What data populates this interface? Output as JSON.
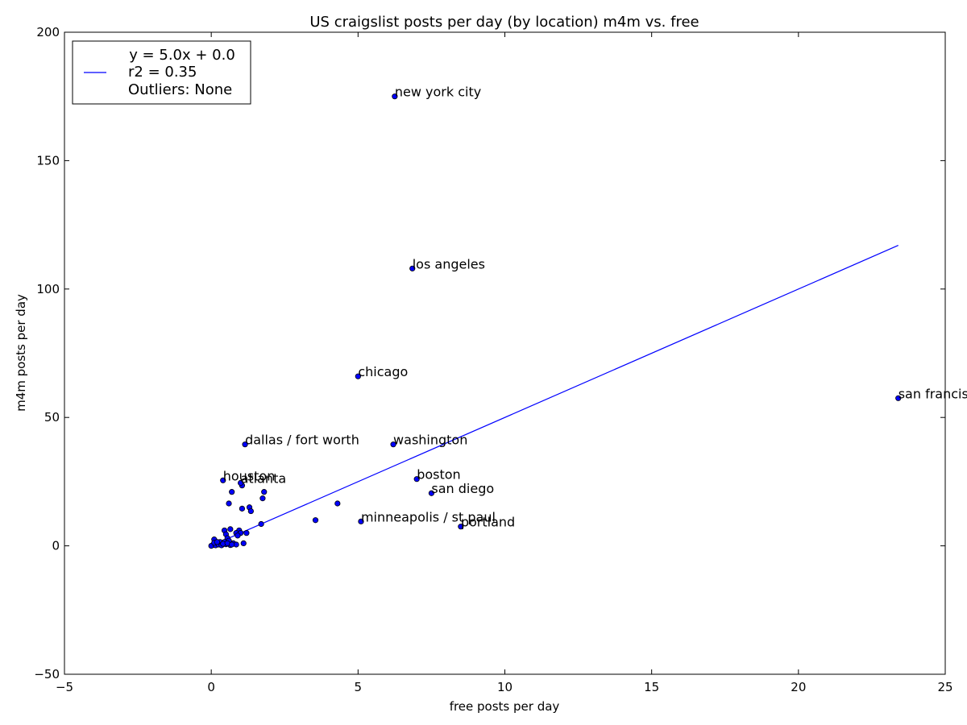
{
  "chart_data": {
    "type": "scatter",
    "title": "US craigslist posts per day (by location) m4m vs. free",
    "xlabel": "free posts per day",
    "ylabel": "m4m posts per day",
    "xlim": [
      -5,
      25
    ],
    "ylim": [
      -50,
      200
    ],
    "xticks": [
      -5,
      0,
      5,
      10,
      15,
      20,
      25
    ],
    "yticks": [
      -50,
      0,
      50,
      100,
      150,
      200
    ],
    "x_tick_labels": [
      "−5",
      "0",
      "5",
      "10",
      "15",
      "20",
      "25"
    ],
    "y_tick_labels": [
      "−50",
      "0",
      "50",
      "100",
      "150",
      "200"
    ],
    "grid": false,
    "legend": {
      "position": "top-left",
      "lines": [
        "y = 5.0x + 0.0",
        "r2 = 0.35",
        "Outliers: None"
      ]
    },
    "fit_line": {
      "slope": 5.0,
      "intercept": 0.0,
      "x_range": [
        0.0,
        23.4
      ],
      "color": "#0000ff"
    },
    "point_color": "#0000ff",
    "labeled_points": [
      {
        "label": "new york city",
        "x": 6.25,
        "y": 175
      },
      {
        "label": "los angeles",
        "x": 6.85,
        "y": 108
      },
      {
        "label": "chicago",
        "x": 5.0,
        "y": 66
      },
      {
        "label": "san francisco",
        "x": 23.4,
        "y": 57.5
      },
      {
        "label": "dallas / fort worth",
        "x": 1.15,
        "y": 39.5
      },
      {
        "label": "washington",
        "x": 6.2,
        "y": 39.5
      },
      {
        "label": "houston",
        "x": 0.4,
        "y": 25.5
      },
      {
        "label": "atlanta",
        "x": 1.0,
        "y": 24.5
      },
      {
        "label": "boston",
        "x": 7.0,
        "y": 26
      },
      {
        "label": "san diego",
        "x": 7.5,
        "y": 20.5
      },
      {
        "label": "minneapolis / st paul",
        "x": 5.1,
        "y": 9.5
      },
      {
        "label": "portland",
        "x": 8.5,
        "y": 7.5
      }
    ],
    "unlabeled_points": [
      {
        "x": 0.7,
        "y": 21
      },
      {
        "x": 1.05,
        "y": 23.5
      },
      {
        "x": 1.8,
        "y": 21
      },
      {
        "x": 1.75,
        "y": 18.5
      },
      {
        "x": 0.6,
        "y": 16.5
      },
      {
        "x": 1.05,
        "y": 14.5
      },
      {
        "x": 1.3,
        "y": 15
      },
      {
        "x": 1.35,
        "y": 13.5
      },
      {
        "x": 4.3,
        "y": 16.5
      },
      {
        "x": 3.55,
        "y": 10
      },
      {
        "x": 1.7,
        "y": 8.5
      },
      {
        "x": 0.45,
        "y": 6
      },
      {
        "x": 0.65,
        "y": 6.5
      },
      {
        "x": 0.95,
        "y": 6
      },
      {
        "x": 0.85,
        "y": 5
      },
      {
        "x": 0.5,
        "y": 4.5
      },
      {
        "x": 1.0,
        "y": 5
      },
      {
        "x": 1.2,
        "y": 5
      },
      {
        "x": 0.9,
        "y": 4
      },
      {
        "x": 0.55,
        "y": 3
      },
      {
        "x": 0.1,
        "y": 2.5
      },
      {
        "x": 0.3,
        "y": 1.5
      },
      {
        "x": 0.45,
        "y": 1.5
      },
      {
        "x": 0.6,
        "y": 2
      },
      {
        "x": 0.75,
        "y": 1
      },
      {
        "x": 0.85,
        "y": 0.5
      },
      {
        "x": 1.1,
        "y": 1
      },
      {
        "x": 0.2,
        "y": 0.8
      },
      {
        "x": 0.05,
        "y": 0.3
      },
      {
        "x": 0.0,
        "y": 0.0
      },
      {
        "x": 0.15,
        "y": 0.2
      },
      {
        "x": 0.25,
        "y": 0.5
      },
      {
        "x": 0.35,
        "y": 0.2
      },
      {
        "x": 0.5,
        "y": 0.6
      },
      {
        "x": 0.65,
        "y": 0.3
      },
      {
        "x": 0.1,
        "y": 1.2
      },
      {
        "x": 0.4,
        "y": 0.8
      },
      {
        "x": 0.55,
        "y": 1.0
      },
      {
        "x": 0.7,
        "y": 0.5
      },
      {
        "x": 0.2,
        "y": 1.5
      }
    ]
  }
}
